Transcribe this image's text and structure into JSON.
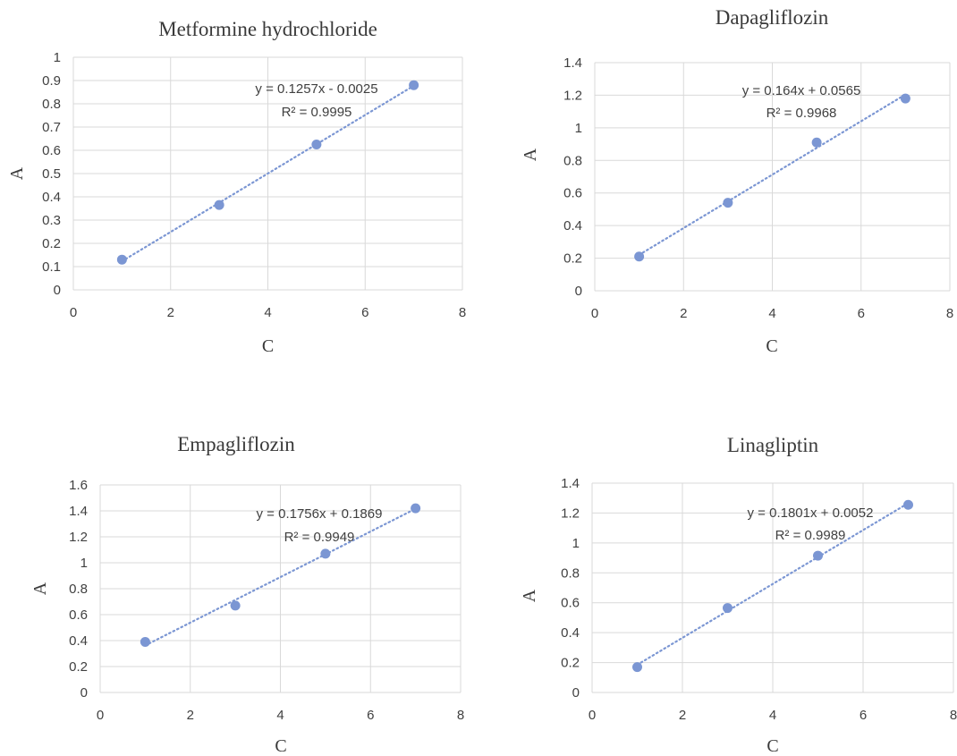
{
  "colors": {
    "marker": "#7b96d3",
    "trendline": "#7b96d3",
    "grid": "#d9d9d9",
    "text": "#404040"
  },
  "chart_data": [
    {
      "type": "scatter",
      "title": "Metformine hydrochloride",
      "xlabel": "C",
      "ylabel": "A",
      "xlim": [
        0,
        8
      ],
      "ylim": [
        0,
        1
      ],
      "xticks": [
        0,
        2,
        4,
        6,
        8
      ],
      "yticks": [
        0,
        0.1,
        0.2,
        0.3,
        0.4,
        0.5,
        0.6,
        0.7,
        0.8,
        0.9,
        1
      ],
      "grid": true,
      "series": [
        {
          "x": [
            1,
            3,
            5,
            7
          ],
          "y": [
            0.13,
            0.365,
            0.625,
            0.88
          ]
        }
      ],
      "trendline": {
        "type": "linear",
        "slope": 0.1257,
        "intercept": -0.0025,
        "style": "dotted",
        "equation": "y = 0.1257x - 0.0025",
        "r2": "R² = 0.9995"
      }
    },
    {
      "type": "scatter",
      "title": "Dapagliflozin",
      "xlabel": "C",
      "ylabel": "A",
      "xlim": [
        0,
        8
      ],
      "ylim": [
        0,
        1.4
      ],
      "xticks": [
        0,
        2,
        4,
        6,
        8
      ],
      "yticks": [
        0,
        0.2,
        0.4,
        0.6,
        0.8,
        1,
        1.2,
        1.4
      ],
      "grid": true,
      "series": [
        {
          "x": [
            1,
            3,
            5,
            7
          ],
          "y": [
            0.21,
            0.54,
            0.91,
            1.18
          ]
        }
      ],
      "trendline": {
        "type": "linear",
        "slope": 0.164,
        "intercept": 0.0565,
        "style": "dotted",
        "equation": "y = 0.164x + 0.0565",
        "r2": "R² = 0.9968"
      }
    },
    {
      "type": "scatter",
      "title": "Empagliflozin",
      "xlabel": "C",
      "ylabel": "A",
      "xlim": [
        0,
        8
      ],
      "ylim": [
        0,
        1.6
      ],
      "xticks": [
        0,
        2,
        4,
        6,
        8
      ],
      "yticks": [
        0,
        0.2,
        0.4,
        0.6,
        0.8,
        1,
        1.2,
        1.4,
        1.6
      ],
      "grid": true,
      "series": [
        {
          "x": [
            1,
            3,
            5,
            7
          ],
          "y": [
            0.39,
            0.67,
            1.07,
            1.42
          ]
        }
      ],
      "trendline": {
        "type": "linear",
        "slope": 0.1756,
        "intercept": 0.1869,
        "style": "dotted",
        "equation": "y = 0.1756x + 0.1869",
        "r2": "R² = 0.9949"
      }
    },
    {
      "type": "scatter",
      "title": "Linagliptin",
      "xlabel": "C",
      "ylabel": "A",
      "xlim": [
        0,
        8
      ],
      "ylim": [
        0,
        1.4
      ],
      "xticks": [
        0,
        2,
        4,
        6,
        8
      ],
      "yticks": [
        0,
        0.2,
        0.4,
        0.6,
        0.8,
        1,
        1.2,
        1.4
      ],
      "grid": true,
      "series": [
        {
          "x": [
            1,
            3,
            5,
            7
          ],
          "y": [
            0.17,
            0.565,
            0.915,
            1.255
          ]
        }
      ],
      "trendline": {
        "type": "linear",
        "slope": 0.1801,
        "intercept": 0.0052,
        "style": "dotted",
        "equation": "y = 0.1801x + 0.0052",
        "r2": "R² = 0.9989"
      }
    }
  ]
}
